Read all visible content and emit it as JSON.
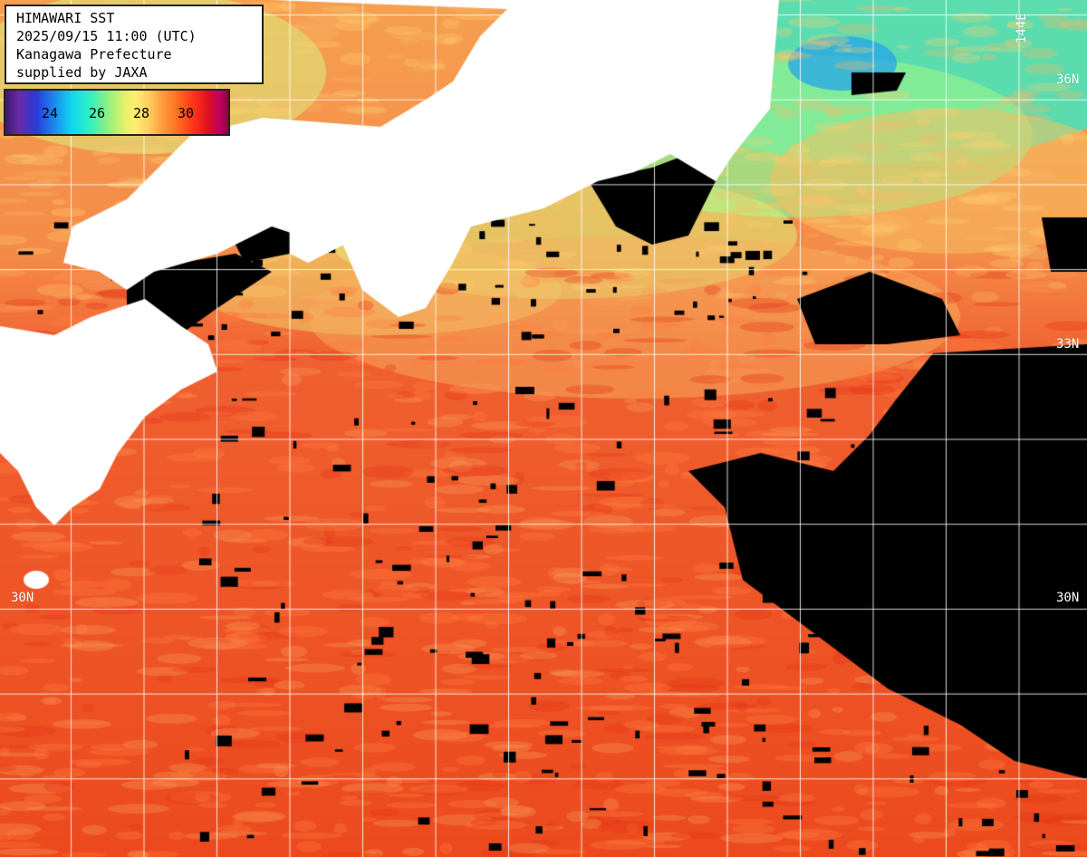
{
  "header": {
    "title": "HIMAWARI SST",
    "datetime": "2025/09/15 11:00 (UTC)",
    "region": "Kanagawa Prefecture",
    "credit": "supplied by JAXA"
  },
  "legend": {
    "ticks": [
      "24",
      "26",
      "28",
      "30"
    ]
  },
  "grid_labels": {
    "lon_144": "144E",
    "lat_36_right": "36N",
    "lat_33_right": "33N",
    "lat_30_left": "30N",
    "lat_30_right": "30N"
  },
  "colors": {
    "land": "#ffffff",
    "cloud": "#000000",
    "gridline": "#ffffff",
    "warm": "#f05020",
    "cool": "#40e8c0"
  }
}
